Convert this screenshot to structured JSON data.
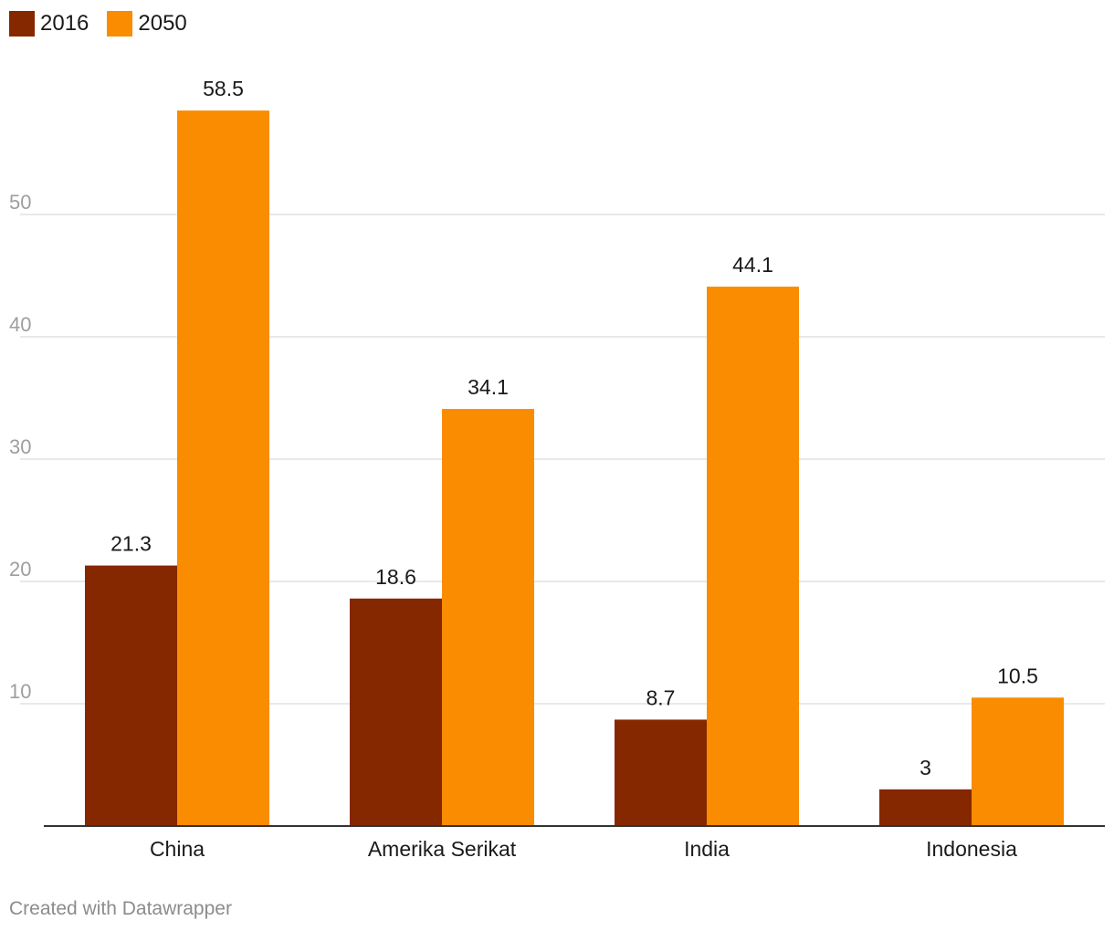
{
  "chart_data": {
    "type": "bar",
    "categories": [
      "China",
      "Amerika Serikat",
      "India",
      "Indonesia"
    ],
    "series": [
      {
        "name": "2016",
        "values": [
          21.3,
          18.6,
          8.7,
          3
        ],
        "color": "#852800"
      },
      {
        "name": "2050",
        "values": [
          58.5,
          34.1,
          44.1,
          10.5
        ],
        "color": "#f98c00"
      }
    ],
    "yticks": [
      10,
      20,
      30,
      40,
      50
    ],
    "ylim": [
      0,
      60
    ],
    "grid": true,
    "legend_position": "top-left",
    "data_labels": true
  },
  "legend": {
    "items": [
      {
        "label": "2016",
        "color": "#852800"
      },
      {
        "label": "2050",
        "color": "#f98c00"
      }
    ]
  },
  "footer": {
    "credit": "Created with Datawrapper"
  }
}
